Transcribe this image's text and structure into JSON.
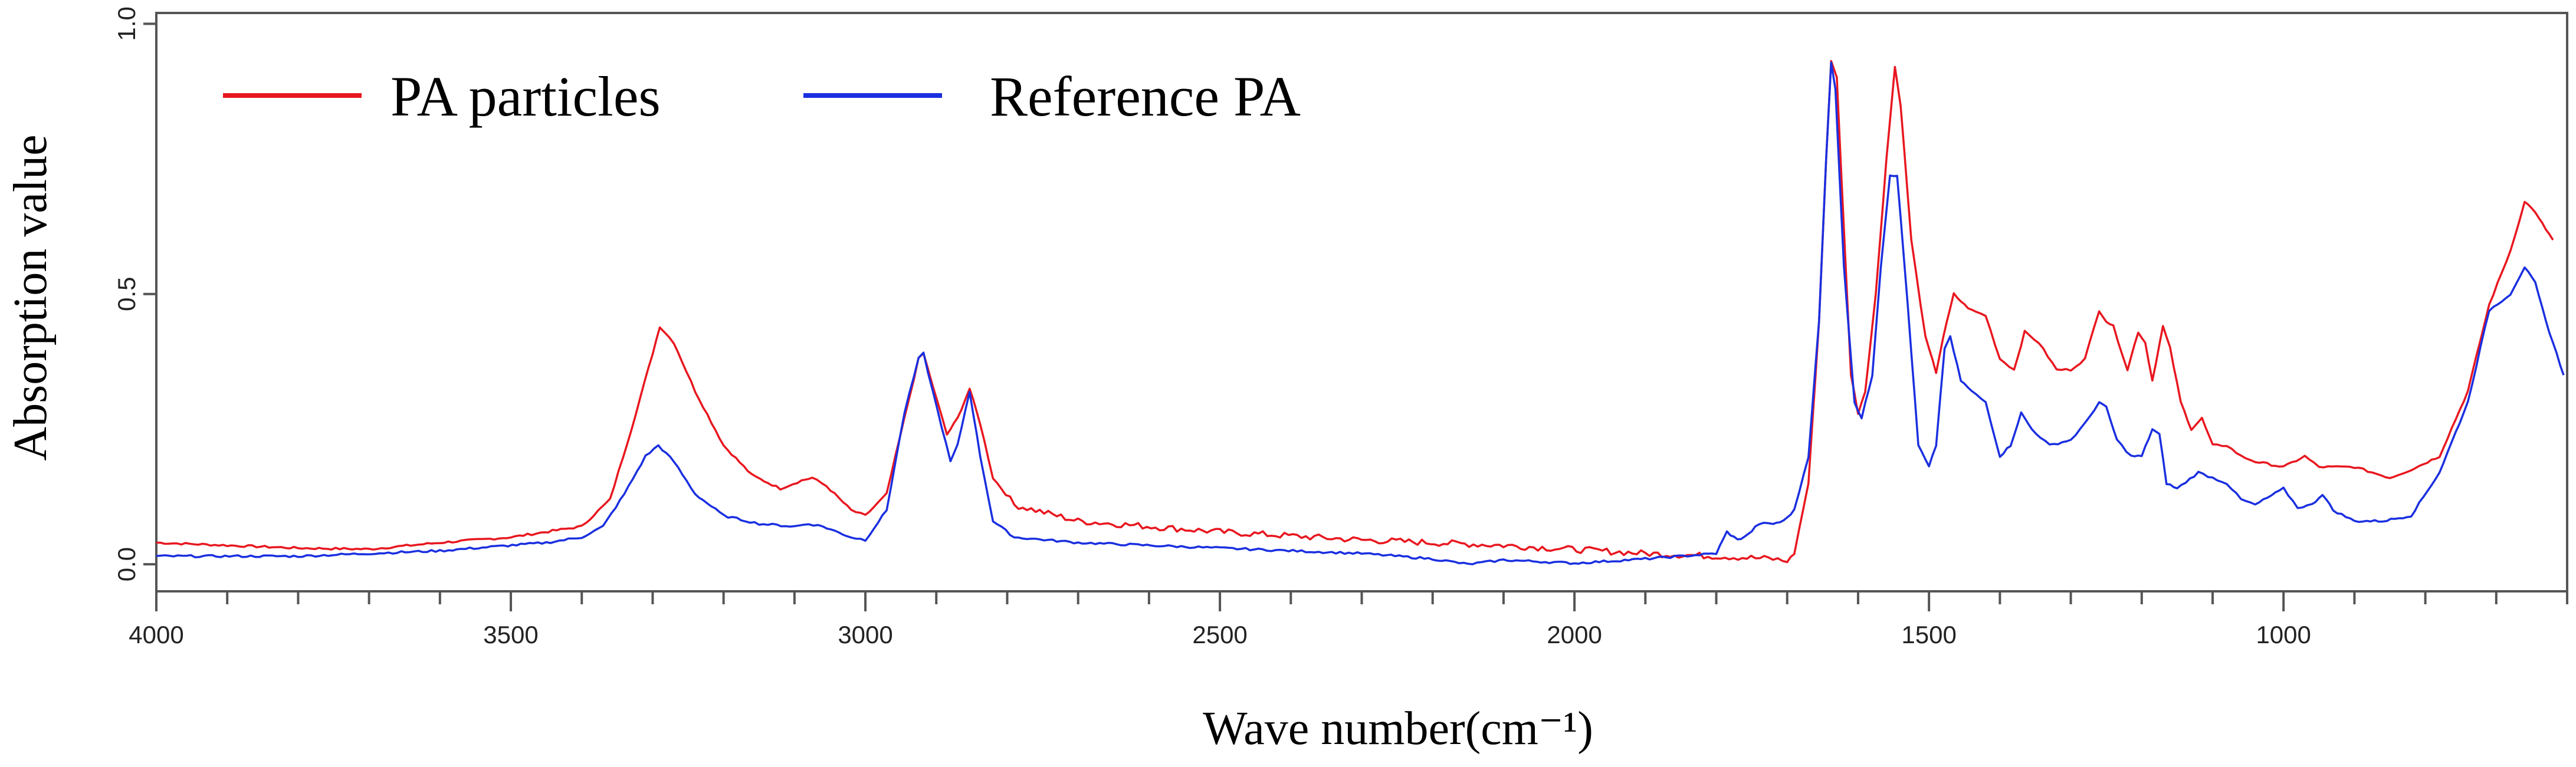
{
  "chart_data": {
    "type": "line",
    "title": "",
    "xlabel": "Wave number(cm⁻¹)",
    "ylabel": "Absorption value",
    "xlim": [
      4000,
      600
    ],
    "ylim": [
      -0.05,
      1.02
    ],
    "x_ticks": [
      4000,
      3500,
      3000,
      2500,
      2000,
      1500,
      1000
    ],
    "x_tick_labels": [
      "4000",
      "3500",
      "3000",
      "2500",
      "2000",
      "1500",
      "1000"
    ],
    "y_ticks": [
      0.0,
      0.5,
      1.0
    ],
    "y_tick_labels": [
      "0.0",
      "0.5",
      "1.0"
    ],
    "legend_position": "top-left",
    "series": [
      {
        "name": "PA particles",
        "color": "#e8171f",
        "points": [
          [
            4000,
            0.04
          ],
          [
            3900,
            0.035
          ],
          [
            3800,
            0.03
          ],
          [
            3700,
            0.028
          ],
          [
            3600,
            0.04
          ],
          [
            3500,
            0.05
          ],
          [
            3400,
            0.07
          ],
          [
            3360,
            0.12
          ],
          [
            3330,
            0.25
          ],
          [
            3300,
            0.39
          ],
          [
            3290,
            0.44
          ],
          [
            3270,
            0.41
          ],
          [
            3240,
            0.32
          ],
          [
            3200,
            0.22
          ],
          [
            3160,
            0.165
          ],
          [
            3120,
            0.14
          ],
          [
            3090,
            0.155
          ],
          [
            3075,
            0.16
          ],
          [
            3055,
            0.145
          ],
          [
            3020,
            0.1
          ],
          [
            3000,
            0.09
          ],
          [
            2970,
            0.13
          ],
          [
            2945,
            0.27
          ],
          [
            2925,
            0.38
          ],
          [
            2918,
            0.39
          ],
          [
            2905,
            0.33
          ],
          [
            2885,
            0.24
          ],
          [
            2870,
            0.27
          ],
          [
            2853,
            0.325
          ],
          [
            2838,
            0.26
          ],
          [
            2820,
            0.16
          ],
          [
            2790,
            0.11
          ],
          [
            2700,
            0.08
          ],
          [
            2500,
            0.06
          ],
          [
            2300,
            0.045
          ],
          [
            2100,
            0.035
          ],
          [
            1900,
            0.02
          ],
          [
            1800,
            0.015
          ],
          [
            1720,
            0.01
          ],
          [
            1700,
            0.005
          ],
          [
            1690,
            0.02
          ],
          [
            1670,
            0.15
          ],
          [
            1655,
            0.45
          ],
          [
            1645,
            0.75
          ],
          [
            1638,
            0.93
          ],
          [
            1630,
            0.9
          ],
          [
            1620,
            0.62
          ],
          [
            1610,
            0.35
          ],
          [
            1600,
            0.28
          ],
          [
            1590,
            0.32
          ],
          [
            1575,
            0.5
          ],
          [
            1560,
            0.75
          ],
          [
            1548,
            0.92
          ],
          [
            1540,
            0.85
          ],
          [
            1525,
            0.6
          ],
          [
            1505,
            0.42
          ],
          [
            1490,
            0.355
          ],
          [
            1480,
            0.42
          ],
          [
            1465,
            0.5
          ],
          [
            1450,
            0.48
          ],
          [
            1440,
            0.47
          ],
          [
            1420,
            0.46
          ],
          [
            1400,
            0.38
          ],
          [
            1380,
            0.36
          ],
          [
            1365,
            0.43
          ],
          [
            1345,
            0.41
          ],
          [
            1320,
            0.36
          ],
          [
            1300,
            0.36
          ],
          [
            1280,
            0.38
          ],
          [
            1260,
            0.47
          ],
          [
            1250,
            0.45
          ],
          [
            1240,
            0.44
          ],
          [
            1220,
            0.36
          ],
          [
            1205,
            0.43
          ],
          [
            1195,
            0.41
          ],
          [
            1185,
            0.34
          ],
          [
            1170,
            0.44
          ],
          [
            1160,
            0.4
          ],
          [
            1145,
            0.3
          ],
          [
            1130,
            0.25
          ],
          [
            1115,
            0.27
          ],
          [
            1100,
            0.22
          ],
          [
            1080,
            0.22
          ],
          [
            1060,
            0.2
          ],
          [
            1040,
            0.19
          ],
          [
            1000,
            0.18
          ],
          [
            970,
            0.2
          ],
          [
            950,
            0.18
          ],
          [
            900,
            0.18
          ],
          [
            850,
            0.16
          ],
          [
            820,
            0.175
          ],
          [
            780,
            0.2
          ],
          [
            740,
            0.32
          ],
          [
            710,
            0.48
          ],
          [
            680,
            0.58
          ],
          [
            660,
            0.67
          ],
          [
            650,
            0.66
          ],
          [
            640,
            0.64
          ],
          [
            630,
            0.62
          ],
          [
            620,
            0.6
          ]
        ]
      },
      {
        "name": "Reference PA",
        "color": "#1a2fe0",
        "points": [
          [
            4000,
            0.015
          ],
          [
            3800,
            0.015
          ],
          [
            3600,
            0.025
          ],
          [
            3450,
            0.04
          ],
          [
            3400,
            0.05
          ],
          [
            3370,
            0.07
          ],
          [
            3340,
            0.13
          ],
          [
            3310,
            0.2
          ],
          [
            3292,
            0.22
          ],
          [
            3270,
            0.19
          ],
          [
            3240,
            0.13
          ],
          [
            3200,
            0.09
          ],
          [
            3150,
            0.075
          ],
          [
            3100,
            0.07
          ],
          [
            3080,
            0.075
          ],
          [
            3060,
            0.07
          ],
          [
            3020,
            0.05
          ],
          [
            3000,
            0.045
          ],
          [
            2970,
            0.1
          ],
          [
            2945,
            0.28
          ],
          [
            2925,
            0.38
          ],
          [
            2918,
            0.39
          ],
          [
            2905,
            0.32
          ],
          [
            2880,
            0.19
          ],
          [
            2870,
            0.22
          ],
          [
            2853,
            0.32
          ],
          [
            2838,
            0.2
          ],
          [
            2820,
            0.08
          ],
          [
            2790,
            0.05
          ],
          [
            2700,
            0.04
          ],
          [
            2500,
            0.03
          ],
          [
            2300,
            0.02
          ],
          [
            2200,
            0.01
          ],
          [
            2150,
            0.0
          ],
          [
            2100,
            0.008
          ],
          [
            2000,
            0.002
          ],
          [
            1900,
            0.01
          ],
          [
            1800,
            0.02
          ],
          [
            1785,
            0.06
          ],
          [
            1770,
            0.045
          ],
          [
            1755,
            0.055
          ],
          [
            1740,
            0.075
          ],
          [
            1720,
            0.075
          ],
          [
            1705,
            0.08
          ],
          [
            1690,
            0.1
          ],
          [
            1670,
            0.2
          ],
          [
            1655,
            0.45
          ],
          [
            1645,
            0.75
          ],
          [
            1638,
            0.93
          ],
          [
            1632,
            0.88
          ],
          [
            1620,
            0.55
          ],
          [
            1605,
            0.3
          ],
          [
            1595,
            0.27
          ],
          [
            1580,
            0.35
          ],
          [
            1568,
            0.55
          ],
          [
            1555,
            0.72
          ],
          [
            1545,
            0.72
          ],
          [
            1530,
            0.48
          ],
          [
            1515,
            0.22
          ],
          [
            1500,
            0.18
          ],
          [
            1490,
            0.22
          ],
          [
            1478,
            0.4
          ],
          [
            1470,
            0.42
          ],
          [
            1455,
            0.34
          ],
          [
            1440,
            0.32
          ],
          [
            1420,
            0.3
          ],
          [
            1400,
            0.2
          ],
          [
            1385,
            0.22
          ],
          [
            1370,
            0.28
          ],
          [
            1355,
            0.25
          ],
          [
            1330,
            0.22
          ],
          [
            1300,
            0.23
          ],
          [
            1280,
            0.26
          ],
          [
            1260,
            0.3
          ],
          [
            1250,
            0.29
          ],
          [
            1235,
            0.23
          ],
          [
            1215,
            0.2
          ],
          [
            1200,
            0.2
          ],
          [
            1185,
            0.25
          ],
          [
            1175,
            0.24
          ],
          [
            1165,
            0.15
          ],
          [
            1150,
            0.14
          ],
          [
            1120,
            0.17
          ],
          [
            1100,
            0.16
          ],
          [
            1080,
            0.15
          ],
          [
            1060,
            0.12
          ],
          [
            1040,
            0.11
          ],
          [
            1000,
            0.14
          ],
          [
            980,
            0.105
          ],
          [
            960,
            0.11
          ],
          [
            945,
            0.13
          ],
          [
            930,
            0.1
          ],
          [
            900,
            0.08
          ],
          [
            860,
            0.08
          ],
          [
            820,
            0.09
          ],
          [
            780,
            0.17
          ],
          [
            740,
            0.3
          ],
          [
            710,
            0.47
          ],
          [
            680,
            0.5
          ],
          [
            660,
            0.55
          ],
          [
            645,
            0.52
          ],
          [
            630,
            0.45
          ],
          [
            615,
            0.39
          ],
          [
            605,
            0.35
          ]
        ]
      }
    ]
  }
}
